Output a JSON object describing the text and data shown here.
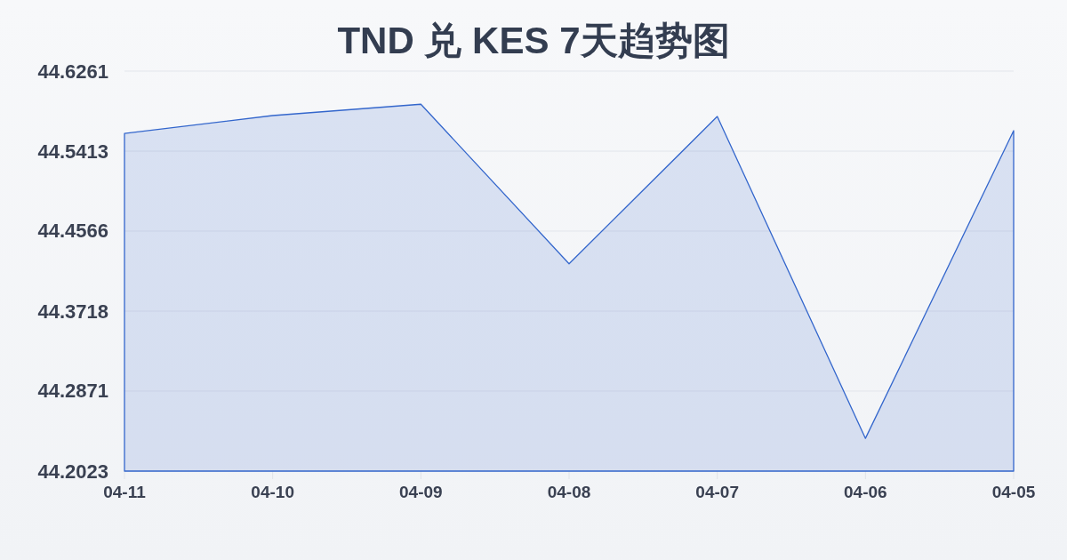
{
  "chart_data": {
    "type": "area",
    "title": "TND 兑 KES 7天趋势图",
    "categories": [
      "04-11",
      "04-10",
      "04-09",
      "04-08",
      "04-07",
      "04-06",
      "04-05"
    ],
    "values": [
      44.56,
      44.579,
      44.591,
      44.422,
      44.578,
      44.237,
      44.563
    ],
    "color": "#3366cc",
    "ylim": [
      44.2023,
      44.6261
    ],
    "yticks": [
      44.2023,
      44.2871,
      44.3718,
      44.4566,
      44.5413,
      44.6261
    ],
    "grid": "y"
  }
}
